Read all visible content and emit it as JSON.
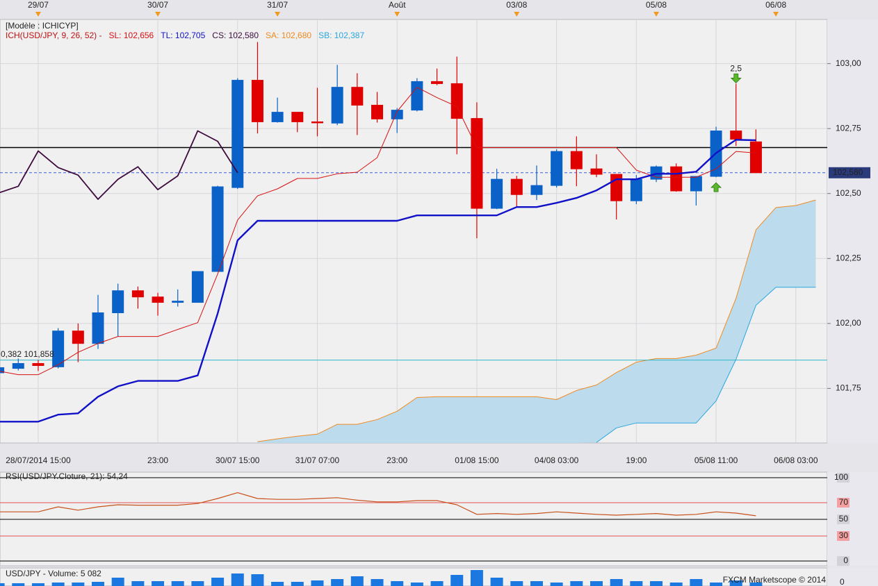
{
  "chart_data": [
    {
      "type": "candlestick",
      "template": "[Modèle : ICHICYP]",
      "indicator": "ICH(USD/JPY, 9, 26, 52) -",
      "categories": [
        null,
        null,
        "28/07/2014 15:00",
        null,
        null,
        null,
        null,
        null,
        "23:00",
        null,
        null,
        null,
        "30/07 15:00",
        null,
        null,
        null,
        "31/07 07:00",
        null,
        null,
        null,
        "23:00",
        null,
        null,
        null,
        "01/08 15:00",
        null,
        null,
        null,
        "04/08 03:00",
        null,
        null,
        null,
        "19:00",
        null,
        null,
        null,
        "05/08 11:00",
        null,
        null,
        null,
        "06/08 03:00",
        null
      ],
      "top_categories": [
        null,
        null,
        "29/07",
        null,
        null,
        null,
        null,
        null,
        "30/07",
        null,
        null,
        null,
        null,
        null,
        "31/07",
        null,
        null,
        null,
        null,
        null,
        "Août",
        null,
        null,
        null,
        null,
        null,
        "03/08",
        null,
        null,
        null,
        null,
        null,
        null,
        "05/08",
        null,
        null,
        null,
        null,
        null,
        "06/08",
        null,
        null
      ],
      "open": [
        101.81,
        101.827,
        101.846,
        101.833,
        101.971,
        101.923,
        102.041,
        102.126,
        102.102,
        102.081,
        102.081,
        102.2,
        102.523,
        102.936,
        102.776,
        102.813,
        102.776,
        102.771,
        102.909,
        102.84,
        102.787,
        102.821,
        102.931,
        102.923,
        102.789,
        102.443,
        102.555,
        102.496,
        102.531,
        102.662,
        102.595,
        102.574,
        102.472,
        102.555,
        102.603,
        102.51,
        102.566,
        102.741,
        102.699,
        null,
        null,
        null
      ],
      "high": [
        101.83,
        101.865,
        101.859,
        101.982,
        102.0,
        102.11,
        102.153,
        102.142,
        102.118,
        102.131,
        102.2,
        102.53,
        102.944,
        103.083,
        102.869,
        102.813,
        102.907,
        102.995,
        102.963,
        102.891,
        102.829,
        102.944,
        102.981,
        103.027,
        102.851,
        102.595,
        102.568,
        102.608,
        102.67,
        102.72,
        102.651,
        102.574,
        102.571,
        102.608,
        102.616,
        102.566,
        102.757,
        102.923,
        102.747,
        null,
        null,
        null
      ],
      "low": [
        101.81,
        101.819,
        101.817,
        101.827,
        101.851,
        101.902,
        101.95,
        102.057,
        102.03,
        102.065,
        102.081,
        102.2,
        102.518,
        102.731,
        102.773,
        102.736,
        102.72,
        102.763,
        102.725,
        102.773,
        102.733,
        102.816,
        102.917,
        102.651,
        102.328,
        102.44,
        102.451,
        102.475,
        102.523,
        102.528,
        102.563,
        102.4,
        102.459,
        102.544,
        102.507,
        102.454,
        102.563,
        102.683,
        102.58,
        null,
        null,
        null
      ],
      "close": [
        101.83,
        101.846,
        101.838,
        101.971,
        101.923,
        102.041,
        102.126,
        102.102,
        102.081,
        102.086,
        102.2,
        102.526,
        102.936,
        102.776,
        102.813,
        102.776,
        102.774,
        102.909,
        102.84,
        102.787,
        102.821,
        102.931,
        102.923,
        102.789,
        102.443,
        102.555,
        102.496,
        102.531,
        102.662,
        102.595,
        102.574,
        102.472,
        102.555,
        102.603,
        102.51,
        102.566,
        102.741,
        102.709,
        102.58,
        null,
        null,
        null
      ],
      "up_color": "#0a62c8",
      "down_color": "#e00000",
      "series": [
        {
          "name": "SL: 102,656",
          "color": "#d81010",
          "values": [
            101.817,
            101.803,
            101.803,
            101.841,
            101.889,
            101.923,
            101.95,
            101.95,
            101.95,
            101.977,
            102.003,
            102.19,
            102.398,
            102.491,
            102.518,
            102.558,
            102.558,
            102.576,
            102.582,
            102.638,
            102.816,
            102.909,
            102.869,
            102.835,
            102.677,
            102.677,
            102.677,
            102.677,
            102.677,
            102.677,
            102.677,
            102.677,
            102.59,
            102.563,
            102.563,
            102.563,
            102.595,
            102.662,
            102.656,
            null,
            null,
            null
          ]
        },
        {
          "name": "TL: 102,705",
          "color": "#1010c8",
          "values": [
            101.622,
            101.622,
            101.622,
            101.649,
            101.654,
            101.718,
            101.758,
            101.779,
            101.779,
            101.779,
            101.8,
            102.038,
            102.32,
            102.395,
            102.395,
            102.395,
            102.395,
            102.395,
            102.395,
            102.395,
            102.395,
            102.416,
            102.416,
            102.416,
            102.416,
            102.416,
            102.448,
            102.448,
            102.464,
            102.483,
            102.512,
            102.555,
            102.555,
            102.576,
            102.576,
            102.584,
            102.656,
            102.707,
            102.705,
            null,
            null,
            null
          ]
        },
        {
          "name": "CS: 102,580",
          "color": "#3c0a3c",
          "values": [
            102.502,
            102.528,
            102.664,
            102.6,
            102.571,
            102.478,
            102.555,
            102.603,
            102.515,
            102.568,
            102.741,
            102.701,
            102.58,
            null,
            null,
            null,
            null,
            null,
            null,
            null,
            null,
            null,
            null,
            null,
            null,
            null,
            null,
            null,
            null,
            null,
            null,
            null,
            null,
            null,
            null,
            null,
            null,
            null,
            null,
            null,
            null,
            null
          ]
        },
        {
          "name": "SA: 102,680",
          "color": "#f08a20",
          "values": [
            null,
            null,
            null,
            null,
            null,
            null,
            null,
            null,
            null,
            null,
            null,
            null,
            null,
            101.545,
            101.556,
            101.566,
            101.574,
            101.612,
            101.612,
            101.63,
            101.662,
            101.715,
            101.718,
            101.718,
            101.718,
            101.718,
            101.718,
            101.718,
            101.707,
            101.742,
            101.763,
            101.811,
            101.851,
            101.865,
            101.865,
            101.878,
            101.905,
            102.097,
            102.36,
            102.446,
            102.454,
            102.475
          ]
        },
        {
          "name": "SB: 102,387",
          "color": "#2aa6e0",
          "values": [
            null,
            null,
            null,
            null,
            null,
            null,
            null,
            null,
            null,
            null,
            null,
            null,
            null,
            null,
            null,
            null,
            null,
            null,
            null,
            null,
            null,
            null,
            null,
            null,
            null,
            null,
            null,
            null,
            null,
            null,
            101.542,
            101.598,
            101.617,
            101.617,
            101.617,
            101.617,
            101.702,
            101.862,
            102.07,
            102.139,
            102.139,
            102.139
          ]
        }
      ],
      "cloud_color": "#bcdcee",
      "hlines": [
        {
          "value": 102.677,
          "color": "#000000"
        },
        {
          "value": 101.859,
          "color": "#30b8c8"
        }
      ],
      "last_price": {
        "value": 102.58,
        "label": "102,580",
        "color": "#3a5ad8"
      },
      "annotations": [
        "0,382 101,858",
        "2,5"
      ],
      "ylim": [
        101.54,
        103.17
      ],
      "yticks": [
        {
          "value": 103.0,
          "label": "103,00"
        },
        {
          "value": 102.75,
          "label": "102,75"
        },
        {
          "value": 102.5,
          "label": "102,50"
        },
        {
          "value": 102.25,
          "label": "102,25"
        },
        {
          "value": 102.0,
          "label": "102,00"
        },
        {
          "value": 101.75,
          "label": "101,75"
        }
      ],
      "grid": true
    },
    {
      "type": "line",
      "title": "RSI(USD/JPY.Cloture, 21): 54,24",
      "color": "#c8501a",
      "values": [
        59,
        59,
        59,
        65,
        61,
        65,
        67.5,
        67,
        67,
        67,
        69,
        75,
        82,
        75,
        74,
        74,
        75,
        76,
        73,
        71,
        71,
        72.5,
        72.5,
        67.5,
        56,
        57,
        56,
        57,
        59,
        57.5,
        56,
        55,
        56,
        57,
        55,
        56,
        59,
        57.5,
        54.24,
        null,
        null,
        null
      ],
      "ylim": [
        0,
        100
      ],
      "yticks": [
        100,
        70,
        50,
        30,
        0
      ],
      "tick_colors": [
        "#000000",
        "#e05050",
        "#000000",
        "#e05050",
        "#000000"
      ]
    },
    {
      "type": "bar",
      "title": "USD/JPY - Volume: 5 082",
      "color": "#1a78e0",
      "values": [
        4000,
        4000,
        4000,
        5000,
        5000,
        6000,
        12000,
        7000,
        7000,
        7000,
        7000,
        12000,
        18000,
        17000,
        6000,
        6000,
        8000,
        10000,
        14000,
        10000,
        7000,
        5000,
        7000,
        16000,
        23000,
        12000,
        7000,
        7000,
        5000,
        7000,
        7000,
        10000,
        7000,
        7000,
        5000,
        10000,
        5000,
        8000,
        5082,
        null,
        null,
        null
      ],
      "ylim": [
        0,
        26000
      ],
      "yticks": [
        0
      ],
      "footer": "FXCM Marketscope © 2014"
    }
  ]
}
